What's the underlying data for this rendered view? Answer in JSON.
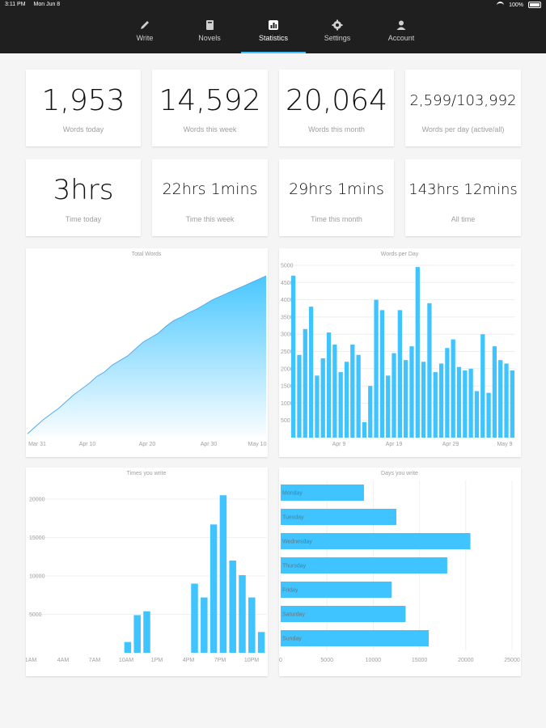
{
  "statusbar": {
    "time": "3:11 PM",
    "date": "Mon Jun 8",
    "battery": "100%"
  },
  "nav": {
    "tabs": [
      {
        "label": "Write",
        "icon": "pencil-icon"
      },
      {
        "label": "Novels",
        "icon": "book-icon"
      },
      {
        "label": "Statistics",
        "icon": "chart-icon"
      },
      {
        "label": "Settings",
        "icon": "gear-icon"
      },
      {
        "label": "Account",
        "icon": "person-icon"
      }
    ],
    "active": "Statistics",
    "accent": "#40c4ff"
  },
  "stats": [
    {
      "value": "1,953",
      "label": "Words today"
    },
    {
      "value": "14,592",
      "label": "Words this week"
    },
    {
      "value": "20,064",
      "label": "Words this month"
    },
    {
      "value": "2,599/103,992",
      "label": "Words per day (active/all)"
    },
    {
      "value": "3hrs",
      "label": "Time today"
    },
    {
      "value": "22hrs 1mins",
      "label": "Time this week"
    },
    {
      "value": "29hrs 1mins",
      "label": "Time this month"
    },
    {
      "value": "143hrs 12mins",
      "label": "All time"
    }
  ],
  "chart_data": [
    {
      "type": "area",
      "title": "Total Words",
      "x_ticks": [
        "Mar 31",
        "Apr 10",
        "Apr 20",
        "Apr 30",
        "May 10"
      ],
      "y": [
        2000,
        8000,
        14000,
        19000,
        24000,
        30000,
        36000,
        41000,
        46000,
        52000,
        56000,
        62000,
        66000,
        70000,
        76000,
        82000,
        86000,
        90000,
        96000,
        101000,
        104000,
        108000,
        111000,
        115000,
        119000,
        122000,
        125000,
        128000,
        131000,
        134000,
        137000,
        140000
      ],
      "ylim": [
        0,
        150000
      ],
      "grid": false,
      "color": "#40c4ff"
    },
    {
      "type": "bar",
      "title": "Words per Day",
      "y_ticks": [
        "5000",
        "4500",
        "4000",
        "3500",
        "3000",
        "2500",
        "2000",
        "1500",
        "1000",
        "500"
      ],
      "x_ticks": [
        "Apr 9",
        "Apr 19",
        "Apr 29",
        "May 9"
      ],
      "values": [
        4700,
        2400,
        3150,
        3800,
        1800,
        2300,
        3050,
        2700,
        1900,
        2200,
        2700,
        2400,
        450,
        1500,
        4000,
        3700,
        1800,
        2450,
        3700,
        2250,
        2650,
        4950,
        2200,
        3900,
        1900,
        2150,
        2600,
        2850,
        2050,
        1950,
        2000,
        1350,
        3000,
        1300,
        2650,
        2250,
        2150,
        1950
      ],
      "ylim": [
        0,
        5000
      ],
      "color": "#40c4ff"
    },
    {
      "type": "bar",
      "title": "Times you write",
      "y_ticks": [
        "20000",
        "15000",
        "10000",
        "5000"
      ],
      "x_ticks": [
        "1AM",
        "4AM",
        "7AM",
        "10AM",
        "1PM",
        "4PM",
        "7PM",
        "10PM"
      ],
      "values": [
        0,
        0,
        0,
        0,
        0,
        0,
        0,
        0,
        0,
        0,
        1400,
        4900,
        5400,
        0,
        0,
        0,
        0,
        9000,
        7200,
        16700,
        20500,
        12000,
        10100,
        7200,
        2700
      ],
      "ylim": [
        0,
        22000
      ],
      "color": "#40c4ff"
    },
    {
      "type": "bar",
      "orientation": "horizontal",
      "title": "Days you write",
      "categories": [
        "Monday",
        "Tuesday",
        "Wednesday",
        "Thursday",
        "Friday",
        "Saturday",
        "Sunday"
      ],
      "values": [
        9000,
        12500,
        20500,
        18000,
        12000,
        13500,
        16000
      ],
      "x_ticks": [
        "0",
        "5000",
        "10000",
        "15000",
        "20000",
        "25000"
      ],
      "xlim": [
        0,
        25000
      ],
      "color": "#40c4ff"
    }
  ]
}
